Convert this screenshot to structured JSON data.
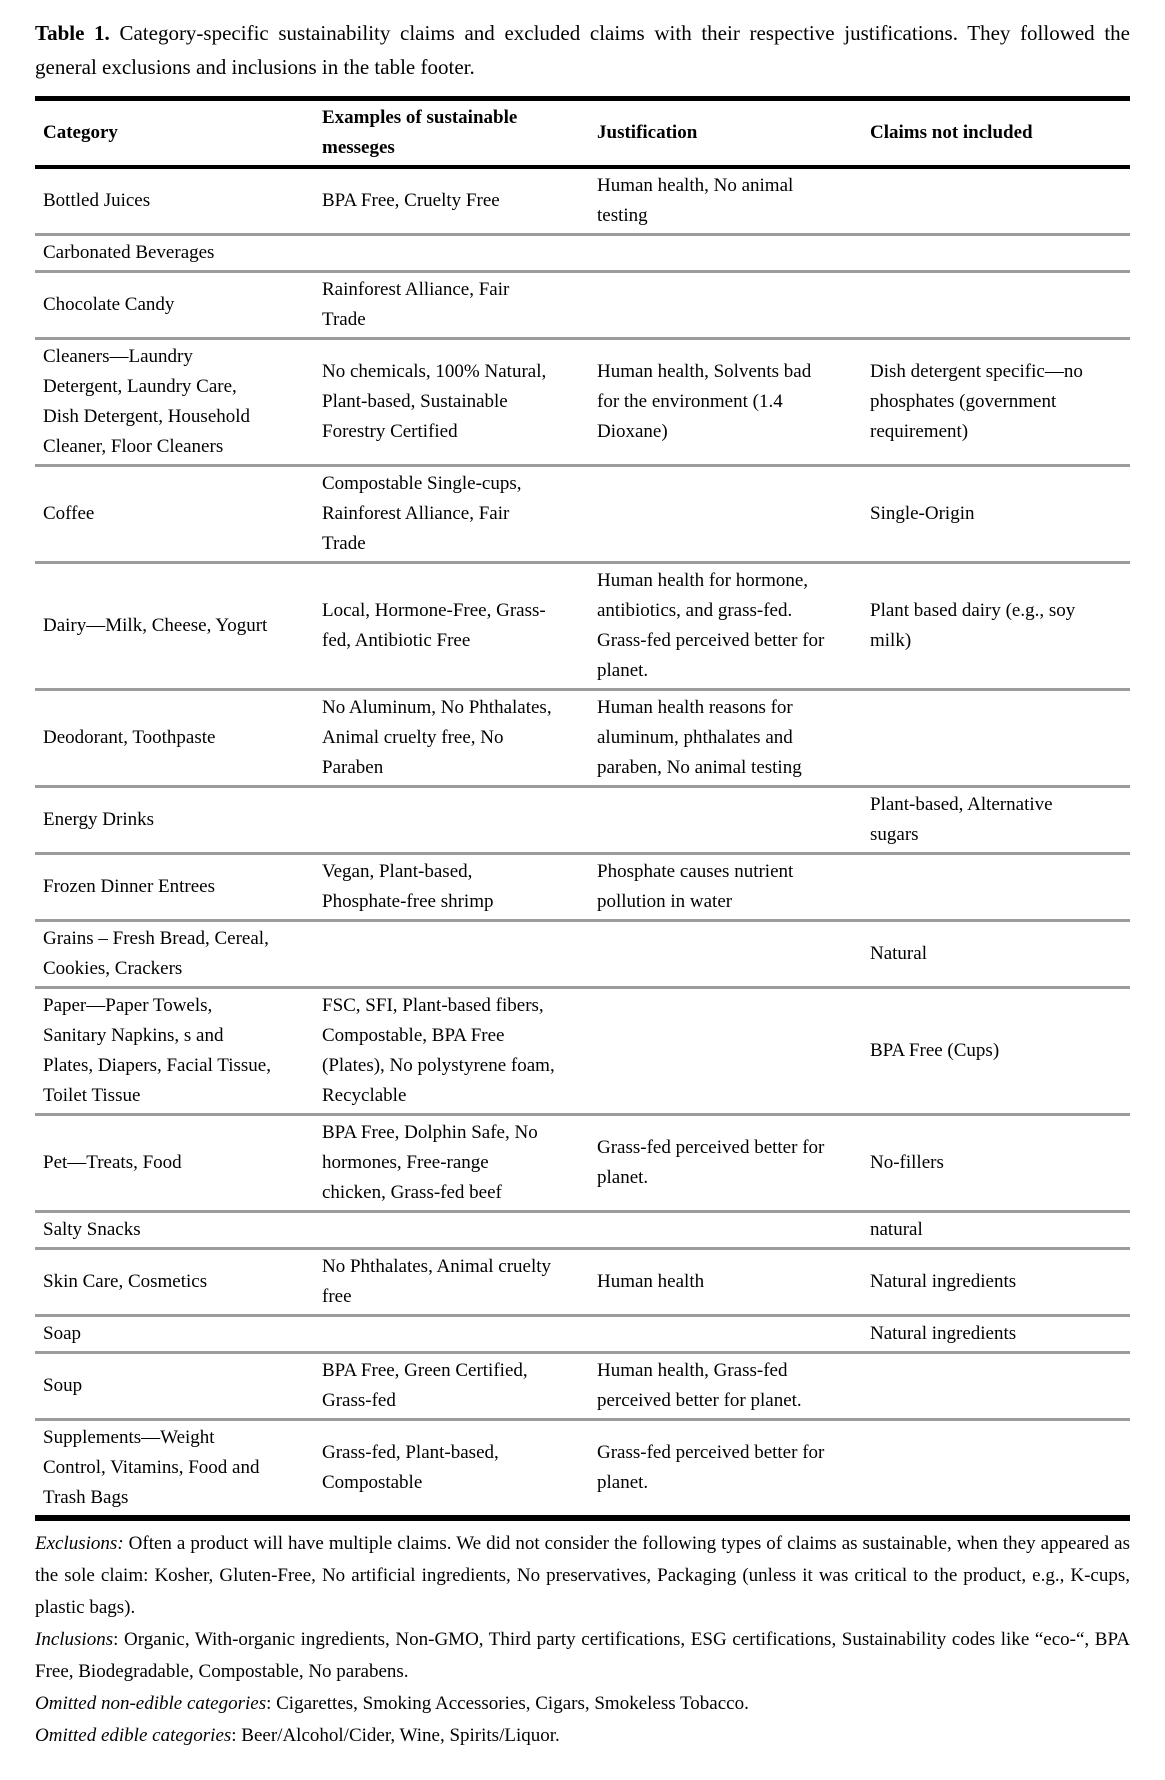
{
  "caption": {
    "label": "Table 1.",
    "text": " Category-specific sustainability claims and excluded claims with their respective justifications. They followed the general exclusions and inclusions in the table footer."
  },
  "table": {
    "columns": [
      "Category",
      "Examples of sustainable messeges",
      "Justification",
      "Claims not included"
    ],
    "rows": [
      {
        "category": "Bottled Juices",
        "examples": "BPA Free, Cruelty Free",
        "justification": "Human health, No animal\ntesting",
        "not_included": ""
      },
      {
        "category": "Carbonated Beverages",
        "examples": "",
        "justification": "",
        "not_included": ""
      },
      {
        "category": "Chocolate Candy",
        "examples": "Rainforest Alliance, Fair\nTrade",
        "justification": "",
        "not_included": ""
      },
      {
        "category": "Cleaners—Laundry\nDetergent, Laundry Care,\nDish Detergent, Household\nCleaner, Floor Cleaners",
        "examples": "No chemicals, 100% Natural,\nPlant-based, Sustainable\nForestry Certified",
        "justification": "Human health, Solvents bad\nfor the environment (1.4\nDioxane)",
        "not_included": "Dish detergent specific—no\nphosphates (government\nrequirement)"
      },
      {
        "category": "Coffee",
        "examples": "Compostable Single-cups,\nRainforest Alliance, Fair\nTrade",
        "justification": "",
        "not_included": "Single-Origin"
      },
      {
        "category": "Dairy—Milk, Cheese, Yogurt",
        "examples": "Local, Hormone-Free, Grass-\nfed, Antibiotic Free",
        "justification": "Human health for hormone,\nantibiotics, and grass-fed.\nGrass-fed perceived better for\nplanet.",
        "not_included": "Plant based dairy (e.g., soy\nmilk)"
      },
      {
        "category": "Deodorant, Toothpaste",
        "examples": "No Aluminum, No Phthalates,\nAnimal cruelty free, No\nParaben",
        "justification": "Human health reasons for\naluminum, phthalates and\nparaben, No animal testing",
        "not_included": ""
      },
      {
        "category": "Energy Drinks",
        "examples": "",
        "justification": "",
        "not_included": "Plant-based, Alternative\nsugars"
      },
      {
        "category": "Frozen Dinner Entrees",
        "examples": "Vegan, Plant-based,\nPhosphate-free shrimp",
        "justification": "Phosphate causes nutrient\npollution in water",
        "not_included": ""
      },
      {
        "category": "Grains – Fresh Bread, Cereal,\nCookies, Crackers",
        "examples": "",
        "justification": "",
        "not_included": "Natural"
      },
      {
        "category": "Paper—Paper Towels,\nSanitary Napkins, s and\nPlates, Diapers, Facial Tissue,\nToilet Tissue",
        "examples": "FSC, SFI, Plant-based fibers,\nCompostable, BPA Free\n(Plates), No polystyrene foam,\nRecyclable",
        "justification": "",
        "not_included": "BPA Free (Cups)"
      },
      {
        "category": "Pet—Treats, Food",
        "examples": "BPA Free, Dolphin Safe, No\nhormones, Free-range\nchicken, Grass-fed beef",
        "justification": "Grass-fed perceived better for\nplanet.",
        "not_included": "No-fillers"
      },
      {
        "category": "Salty Snacks",
        "examples": "",
        "justification": "",
        "not_included": "natural"
      },
      {
        "category": "Skin Care, Cosmetics",
        "examples": "No Phthalates, Animal cruelty\nfree",
        "justification": "Human health",
        "not_included": "Natural ingredients"
      },
      {
        "category": "Soap",
        "examples": "",
        "justification": "",
        "not_included": "Natural ingredients"
      },
      {
        "category": "Soup",
        "examples": "BPA Free, Green Certified,\nGrass-fed",
        "justification": "Human health, Grass-fed\nperceived better for planet.",
        "not_included": ""
      },
      {
        "category": "Supplements—Weight\nControl, Vitamins, Food and\nTrash Bags",
        "examples": "Grass-fed, Plant-based,\nCompostable",
        "justification": "Grass-fed perceived better for\nplanet.",
        "not_included": ""
      }
    ]
  },
  "footnotes": [
    {
      "label": "Exclusions:",
      "text": " Often a product will have multiple claims. We did not consider the following types of claims as sustainable, when they appeared as the sole claim: Kosher, Gluten-Free, No artificial ingredients, No preservatives, Packaging (unless it was critical to the product, e.g., K-cups, plastic bags)."
    },
    {
      "label": "Inclusions",
      "text": ": Organic, With-organic ingredients, Non-GMO, Third party certifications, ESG certifications, Sustainability codes like “eco-“, BPA Free, Biodegradable, Compostable, No parabens."
    },
    {
      "label": "Omitted non-edible categories",
      "text": ": Cigarettes, Smoking Accessories, Cigars, Smokeless Tobacco."
    },
    {
      "label": "Omitted edible categories",
      "text": ": Beer/Alcohol/Cider, Wine, Spirits/Liquor."
    }
  ]
}
